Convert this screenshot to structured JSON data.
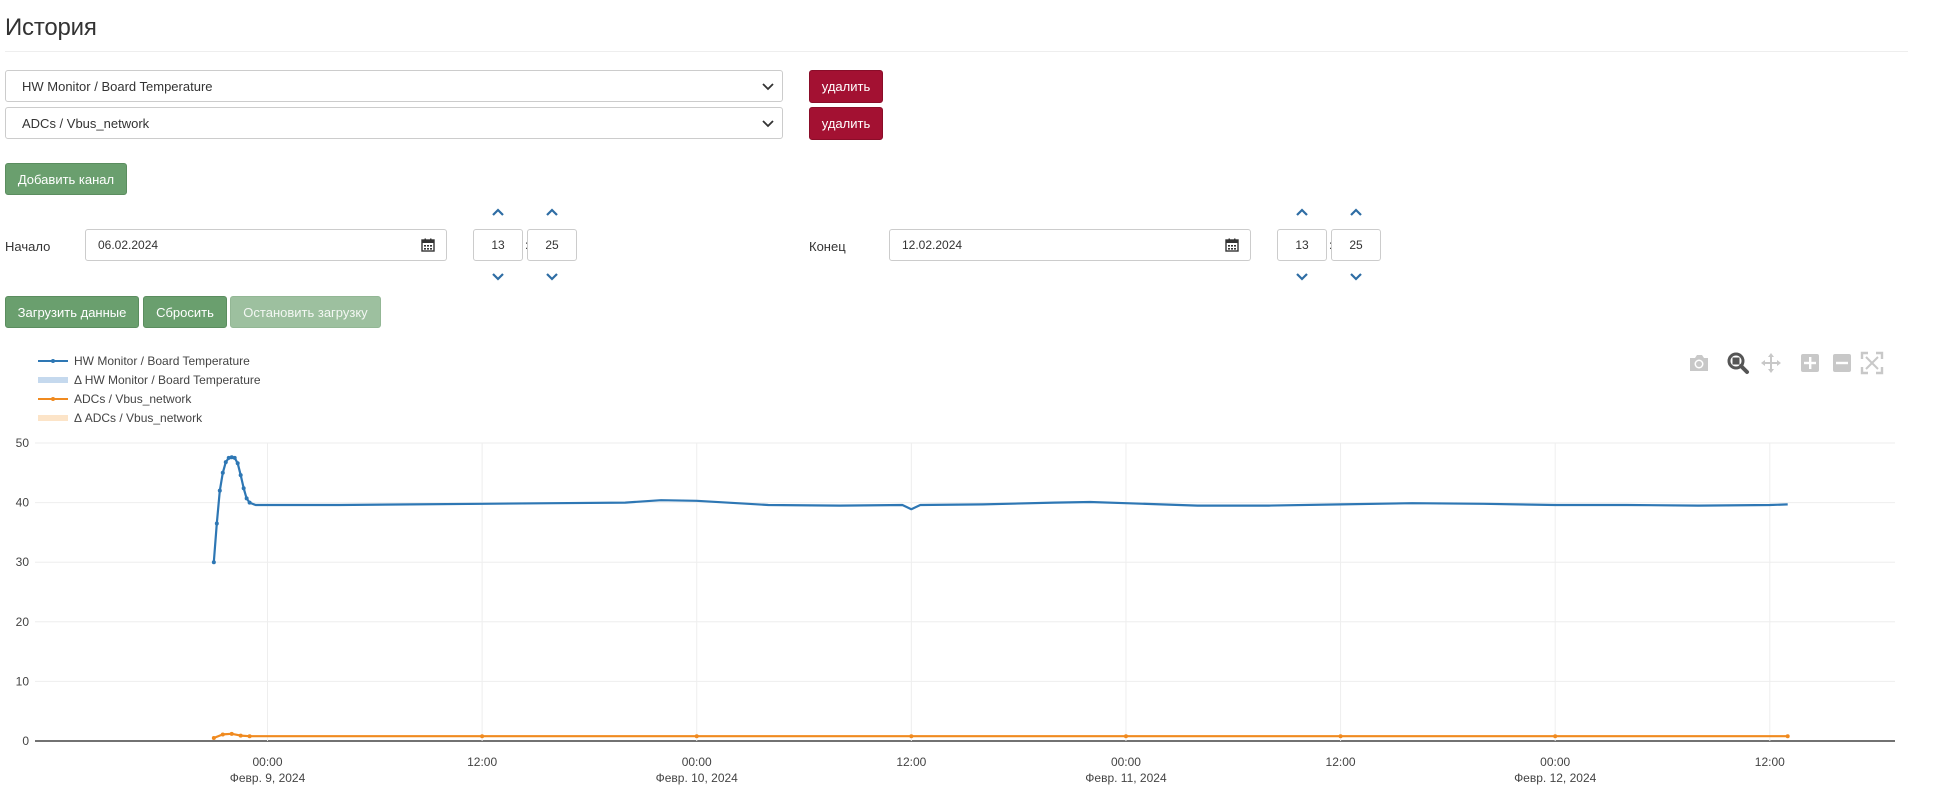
{
  "page": {
    "title": "История"
  },
  "channels": [
    {
      "value": "HW Monitor / Board Temperature",
      "delete_label": "удалить"
    },
    {
      "value": "ADCs / Vbus_network",
      "delete_label": "удалить"
    }
  ],
  "add_channel_label": "Добавить канал",
  "range": {
    "start": {
      "label": "Начало",
      "date": "06.02.2024",
      "hour": "13",
      "minute": "25"
    },
    "end": {
      "label": "Конец",
      "date": "12.02.2024",
      "hour": "13",
      "minute": "25"
    },
    "time_separator": ":"
  },
  "actions": {
    "load_label": "Загрузить данные",
    "reset_label": "Сбросить",
    "stop_label": "Остановить загрузку"
  },
  "toolbar_icons": [
    "camera-icon",
    "zoom-icon",
    "pan-icon",
    "zoom-in-icon",
    "zoom-out-icon",
    "autoscale-icon"
  ],
  "chart_data": {
    "type": "line",
    "title": "",
    "xlabel": "",
    "ylabel": "",
    "ylim": [
      0,
      50
    ],
    "y_ticks": [
      0,
      10,
      20,
      30,
      40,
      50
    ],
    "xlim": [
      "2024-02-08 11:00",
      "2024-02-12 19:00"
    ],
    "x_ticks": [
      {
        "t": "2024-02-09 00:00",
        "label": "00:00",
        "sublabel": "Февр. 9, 2024"
      },
      {
        "t": "2024-02-09 12:00",
        "label": "12:00",
        "sublabel": ""
      },
      {
        "t": "2024-02-10 00:00",
        "label": "00:00",
        "sublabel": "Февр. 10, 2024"
      },
      {
        "t": "2024-02-10 12:00",
        "label": "12:00",
        "sublabel": ""
      },
      {
        "t": "2024-02-11 00:00",
        "label": "00:00",
        "sublabel": "Февр. 11, 2024"
      },
      {
        "t": "2024-02-11 12:00",
        "label": "12:00",
        "sublabel": ""
      },
      {
        "t": "2024-02-12 00:00",
        "label": "00:00",
        "sublabel": "Февр. 12, 2024"
      },
      {
        "t": "2024-02-12 12:00",
        "label": "12:00",
        "sublabel": ""
      }
    ],
    "grid": true,
    "legend_position": "top-left",
    "legend": [
      {
        "name": "HW Monitor / Board Temperature",
        "color": "#2e77b4",
        "style": "line-marker"
      },
      {
        "name": "Δ HW Monitor / Board Temperature",
        "color": "#c5d9ee",
        "style": "band"
      },
      {
        "name": "ADCs / Vbus_network",
        "color": "#f08a1f",
        "style": "line-marker"
      },
      {
        "name": "Δ ADCs / Vbus_network",
        "color": "#fce4c8",
        "style": "band"
      }
    ],
    "series": [
      {
        "name": "HW Monitor / Board Temperature",
        "color": "#2e77b4",
        "points": [
          [
            "2024-02-08 21:00",
            30.0
          ],
          [
            "2024-02-08 21:10",
            36.5
          ],
          [
            "2024-02-08 21:20",
            42.0
          ],
          [
            "2024-02-08 21:30",
            45.0
          ],
          [
            "2024-02-08 21:40",
            46.8
          ],
          [
            "2024-02-08 21:50",
            47.5
          ],
          [
            "2024-02-08 22:00",
            47.6
          ],
          [
            "2024-02-08 22:10",
            47.5
          ],
          [
            "2024-02-08 22:20",
            46.6
          ],
          [
            "2024-02-08 22:30",
            44.6
          ],
          [
            "2024-02-08 22:40",
            42.4
          ],
          [
            "2024-02-08 22:50",
            40.7
          ],
          [
            "2024-02-08 23:00",
            40.0
          ],
          [
            "2024-02-08 23:20",
            39.6
          ],
          [
            "2024-02-09 00:00",
            39.6
          ],
          [
            "2024-02-09 04:00",
            39.6
          ],
          [
            "2024-02-09 08:00",
            39.7
          ],
          [
            "2024-02-09 12:00",
            39.8
          ],
          [
            "2024-02-09 16:00",
            39.9
          ],
          [
            "2024-02-09 20:00",
            40.0
          ],
          [
            "2024-02-09 22:00",
            40.4
          ],
          [
            "2024-02-10 00:00",
            40.3
          ],
          [
            "2024-02-10 04:00",
            39.6
          ],
          [
            "2024-02-10 08:00",
            39.5
          ],
          [
            "2024-02-10 11:30",
            39.6
          ],
          [
            "2024-02-10 12:00",
            38.9
          ],
          [
            "2024-02-10 12:30",
            39.6
          ],
          [
            "2024-02-10 16:00",
            39.7
          ],
          [
            "2024-02-10 20:00",
            40.0
          ],
          [
            "2024-02-10 22:00",
            40.1
          ],
          [
            "2024-02-11 00:00",
            39.9
          ],
          [
            "2024-02-11 04:00",
            39.5
          ],
          [
            "2024-02-11 08:00",
            39.5
          ],
          [
            "2024-02-11 12:00",
            39.7
          ],
          [
            "2024-02-11 16:00",
            39.9
          ],
          [
            "2024-02-11 20:00",
            39.8
          ],
          [
            "2024-02-12 00:00",
            39.6
          ],
          [
            "2024-02-12 04:00",
            39.6
          ],
          [
            "2024-02-12 08:00",
            39.5
          ],
          [
            "2024-02-12 12:00",
            39.6
          ],
          [
            "2024-02-12 13:00",
            39.7
          ]
        ]
      },
      {
        "name": "ADCs / Vbus_network",
        "color": "#f08a1f",
        "points": [
          [
            "2024-02-08 21:00",
            0.5
          ],
          [
            "2024-02-08 21:30",
            1.1
          ],
          [
            "2024-02-08 22:00",
            1.2
          ],
          [
            "2024-02-08 22:30",
            0.9
          ],
          [
            "2024-02-08 23:00",
            0.8
          ],
          [
            "2024-02-09 12:00",
            0.8
          ],
          [
            "2024-02-10 00:00",
            0.8
          ],
          [
            "2024-02-10 12:00",
            0.8
          ],
          [
            "2024-02-11 00:00",
            0.8
          ],
          [
            "2024-02-11 12:00",
            0.8
          ],
          [
            "2024-02-12 00:00",
            0.8
          ],
          [
            "2024-02-12 13:00",
            0.8
          ]
        ]
      }
    ]
  }
}
